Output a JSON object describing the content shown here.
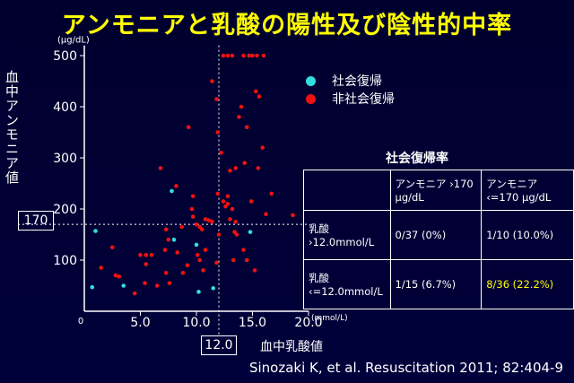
{
  "title": "アンモニアと乳酸の陽性及び陰性的中率",
  "citation": "Sinozaki K, et al. Resuscitation 2011; 82:404-9",
  "chart_data": {
    "type": "scatter",
    "xlabel": "血中乳酸値",
    "ylabel": "血中アンモニア値",
    "x_unit": "(mmol/L)",
    "y_unit": "(μg/dL)",
    "xlim": [
      0,
      20
    ],
    "ylim": [
      0,
      520
    ],
    "x_ticks": [
      5,
      10,
      15,
      20
    ],
    "x_tick_labels": [
      "5.0",
      "10.0",
      "15.0",
      "20.0"
    ],
    "x_origin_label": "0",
    "y_ticks": [
      100,
      200,
      300,
      400,
      500
    ],
    "y_tick_labels": [
      "100",
      "200",
      "300",
      "400",
      "500"
    ],
    "thresholds": {
      "x": 12.0,
      "y": 170,
      "x_label": "12.0",
      "y_label": "170"
    },
    "legend_position": "top-right",
    "series": [
      {
        "name": "社会復帰",
        "color": "#33dddd",
        "points": [
          [
            0.7,
            47
          ],
          [
            1.0,
            157
          ],
          [
            3.5,
            50
          ],
          [
            7.8,
            235
          ],
          [
            8.0,
            140
          ],
          [
            10.0,
            130
          ],
          [
            10.2,
            38
          ],
          [
            11.5,
            45
          ],
          [
            14.8,
            155
          ]
        ]
      },
      {
        "name": "非社会復帰",
        "color": "#ee1111",
        "points": [
          [
            2.5,
            125
          ],
          [
            1.5,
            85
          ],
          [
            2.8,
            70
          ],
          [
            3.1,
            68
          ],
          [
            4.5,
            35
          ],
          [
            5.0,
            110
          ],
          [
            5.5,
            110
          ],
          [
            5.5,
            92
          ],
          [
            5.4,
            55
          ],
          [
            6.0,
            110
          ],
          [
            6.5,
            50
          ],
          [
            7.3,
            75
          ],
          [
            7.2,
            120
          ],
          [
            7.5,
            140
          ],
          [
            7.3,
            160
          ],
          [
            7.6,
            55
          ],
          [
            8.2,
            245
          ],
          [
            8.3,
            115
          ],
          [
            8.7,
            165
          ],
          [
            8.8,
            75
          ],
          [
            9.2,
            90
          ],
          [
            9.7,
            225
          ],
          [
            9.7,
            185
          ],
          [
            9.3,
            360
          ],
          [
            10.0,
            170
          ],
          [
            10.3,
            100
          ],
          [
            10.6,
            80
          ],
          [
            10.8,
            120
          ],
          [
            10.5,
            160
          ],
          [
            10.8,
            180
          ],
          [
            11.1,
            178
          ],
          [
            11.4,
            175
          ],
          [
            11.4,
            450
          ],
          [
            11.8,
            415
          ],
          [
            11.9,
            350
          ],
          [
            12.2,
            310
          ],
          [
            12.4,
            215
          ],
          [
            12.6,
            205
          ],
          [
            12.8,
            225
          ],
          [
            12.8,
            210
          ],
          [
            13.0,
            180
          ],
          [
            13.2,
            200
          ],
          [
            13.4,
            155
          ],
          [
            13.3,
            100
          ],
          [
            13.6,
            150
          ],
          [
            12.4,
            500
          ],
          [
            12.8,
            500
          ],
          [
            13.2,
            500
          ],
          [
            14.2,
            500
          ],
          [
            14.7,
            500
          ],
          [
            15.0,
            500
          ],
          [
            15.4,
            500
          ],
          [
            16.0,
            500
          ],
          [
            13.5,
            280
          ],
          [
            13.8,
            380
          ],
          [
            14.0,
            400
          ],
          [
            14.3,
            290
          ],
          [
            14.5,
            360
          ],
          [
            14.2,
            120
          ],
          [
            15.3,
            430
          ],
          [
            15.5,
            280
          ],
          [
            15.9,
            320
          ],
          [
            15.6,
            420
          ],
          [
            14.5,
            100
          ],
          [
            15.2,
            80
          ],
          [
            16.7,
            230
          ],
          [
            16.2,
            190
          ],
          [
            10.3,
            165
          ],
          [
            11.9,
            230
          ],
          [
            12.0,
            150
          ],
          [
            13.5,
            175
          ],
          [
            14.9,
            215
          ],
          [
            9.6,
            200
          ],
          [
            18.6,
            188
          ],
          [
            6.8,
            280
          ],
          [
            11.8,
            95
          ],
          [
            10.1,
            110
          ],
          [
            13.0,
            275
          ]
        ]
      }
    ]
  },
  "rate_table": {
    "title": "社会復帰率",
    "col_headers": [
      "アンモニア ›170 μg/dL",
      "アンモニア ‹=170 μg/dL"
    ],
    "rows": [
      {
        "header": "乳酸 ›12.0mmol/L",
        "cells": [
          "0/37 (0%)",
          "1/10 (10.0%)"
        ]
      },
      {
        "header": "乳酸 ‹=12.0mmol/L",
        "cells": [
          "1/15 (6.7%)",
          "8/36 (22.2%)"
        ]
      }
    ],
    "highlight_color": "#ffff00"
  }
}
